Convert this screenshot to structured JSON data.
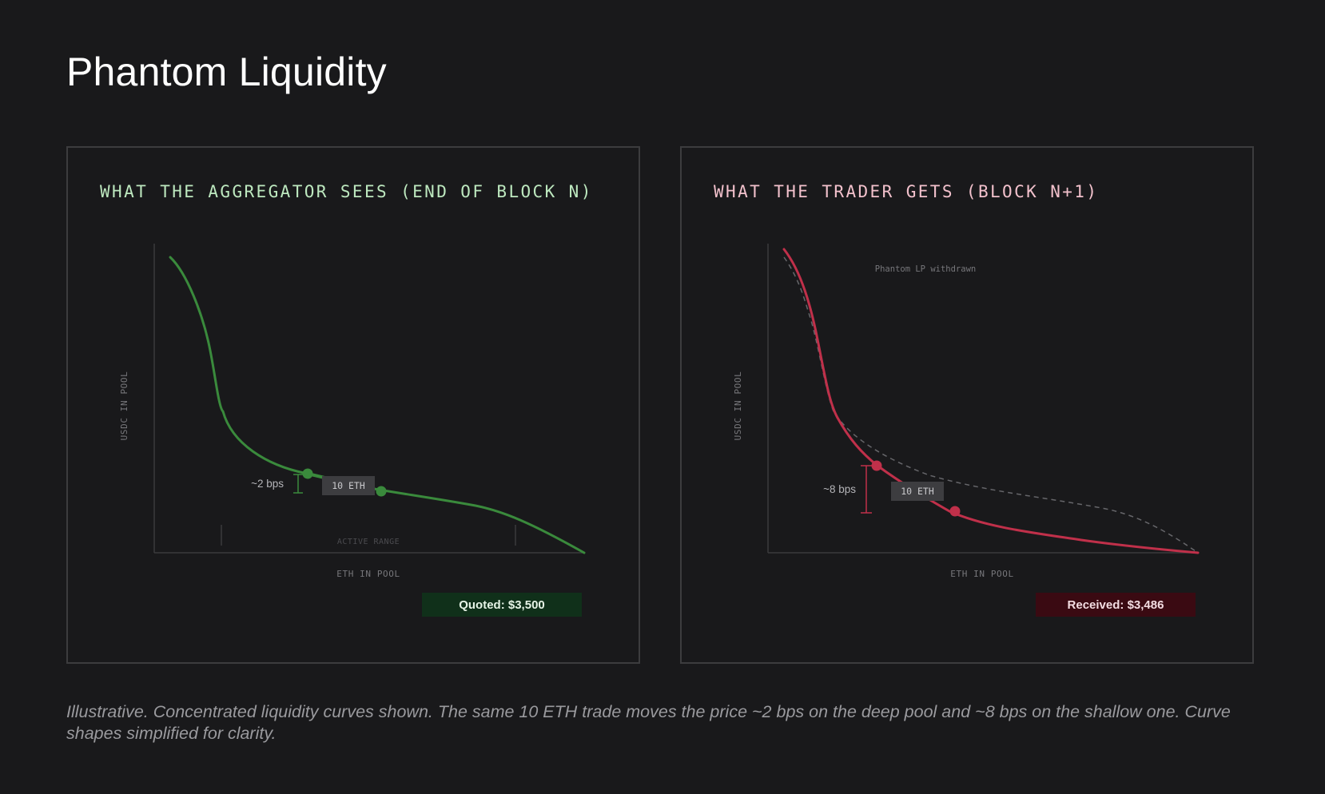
{
  "page": {
    "title": "Phantom Liquidity",
    "caption": "Illustrative. Concentrated liquidity curves shown. The same 10 ETH trade moves the price ~2 bps on the deep pool and ~8 bps on the shallow one. Curve shapes simplified for clarity."
  },
  "panels": {
    "left": {
      "heading": "WHAT THE AGGREGATOR SEES (END OF BLOCK N)",
      "heading_color": "#bde8bf",
      "y_axis_label": "USDC IN POOL",
      "x_axis_label": "ETH IN POOL",
      "range_label": "ACTIVE RANGE",
      "trade_label": "10 ETH",
      "impact_label": "~2 bps",
      "result_label": "Quoted: $3,500",
      "curve_color": "#3a8a3c",
      "result_bg": "#10301a",
      "result_text_color": "#e6f3e6"
    },
    "right": {
      "heading": "WHAT THE TRADER GETS (BLOCK N+1)",
      "heading_color": "#f2c1cc",
      "y_axis_label": "USDC IN POOL",
      "x_axis_label": "ETH IN POOL",
      "trade_label": "10 ETH",
      "impact_label": "~8 bps",
      "annotation": "Phantom LP withdrawn",
      "result_label": "Received: $3,486",
      "curve_color": "#c0304a",
      "ghost_curve_color": "#66666a",
      "result_bg": "#3a0a12",
      "result_text_color": "#f3dde2"
    }
  },
  "icons": {
    "trade_point": "circle-marker",
    "impact_bracket": "bracket-marker"
  }
}
